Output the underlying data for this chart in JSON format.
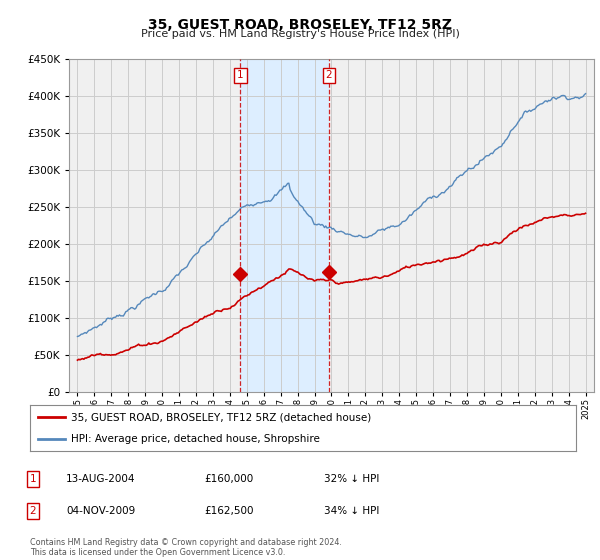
{
  "title": "35, GUEST ROAD, BROSELEY, TF12 5RZ",
  "subtitle": "Price paid vs. HM Land Registry's House Price Index (HPI)",
  "legend_line1": "35, GUEST ROAD, BROSELEY, TF12 5RZ (detached house)",
  "legend_line2": "HPI: Average price, detached house, Shropshire",
  "footer": "Contains HM Land Registry data © Crown copyright and database right 2024.\nThis data is licensed under the Open Government Licence v3.0.",
  "table_rows": [
    {
      "num": "1",
      "date": "13-AUG-2004",
      "price": "£160,000",
      "pct": "32% ↓ HPI"
    },
    {
      "num": "2",
      "date": "04-NOV-2009",
      "price": "£162,500",
      "pct": "34% ↓ HPI"
    }
  ],
  "sale1_x": 2004.62,
  "sale1_y": 160000,
  "sale2_x": 2009.84,
  "sale2_y": 162500,
  "vline1_x": 2004.62,
  "vline2_x": 2009.84,
  "ylim": [
    0,
    450000
  ],
  "xlim": [
    1994.5,
    2025.5
  ],
  "red_color": "#cc0000",
  "blue_color": "#5588bb",
  "shade_color": "#ddeeff",
  "grid_color": "#cccccc",
  "background_color": "#ffffff",
  "plot_bg_color": "#f0f0f0"
}
